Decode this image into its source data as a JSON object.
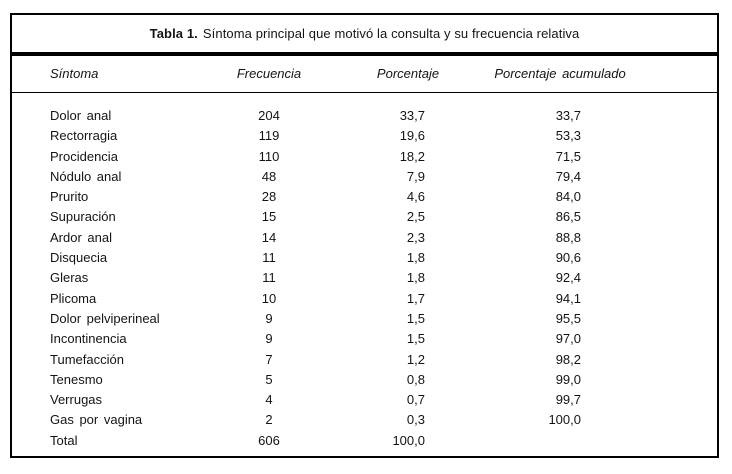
{
  "table": {
    "title_prefix": "Tabla 1.",
    "title_rest": "Síntoma principal que motivó la consulta y su frecuencia relativa",
    "columns": [
      "Síntoma",
      "Frecuencia",
      "Porcentaje",
      "Porcentaje acumulado"
    ],
    "rows": [
      [
        "Dolor anal",
        "204",
        "33,7",
        "33,7"
      ],
      [
        "Rectorragia",
        "119",
        "19,6",
        "53,3"
      ],
      [
        "Procidencia",
        "110",
        "18,2",
        "71,5"
      ],
      [
        "Nódulo anal",
        "48",
        "7,9",
        "79,4"
      ],
      [
        "Prurito",
        "28",
        "4,6",
        "84,0"
      ],
      [
        "Supuración",
        "15",
        "2,5",
        "86,5"
      ],
      [
        "Ardor anal",
        "14",
        "2,3",
        "88,8"
      ],
      [
        "Disquecia",
        "11",
        "1,8",
        "90,6"
      ],
      [
        "Gleras",
        "11",
        "1,8",
        "92,4"
      ],
      [
        "Plicoma",
        "10",
        "1,7",
        "94,1"
      ],
      [
        "Dolor pelviperineal",
        "9",
        "1,5",
        "95,5"
      ],
      [
        "Incontinencia",
        "9",
        "1,5",
        "97,0"
      ],
      [
        "Tumefacción",
        "7",
        "1,2",
        "98,2"
      ],
      [
        "Tenesmo",
        "5",
        "0,8",
        "99,0"
      ],
      [
        "Verrugas",
        "4",
        "0,7",
        "99,7"
      ],
      [
        "Gas por vagina",
        "2",
        "0,3",
        "100,0"
      ],
      [
        "Total",
        "606",
        "100,0",
        ""
      ]
    ],
    "colors": {
      "text": "#141414",
      "rule": "#000000",
      "background": "#ffffff"
    }
  }
}
